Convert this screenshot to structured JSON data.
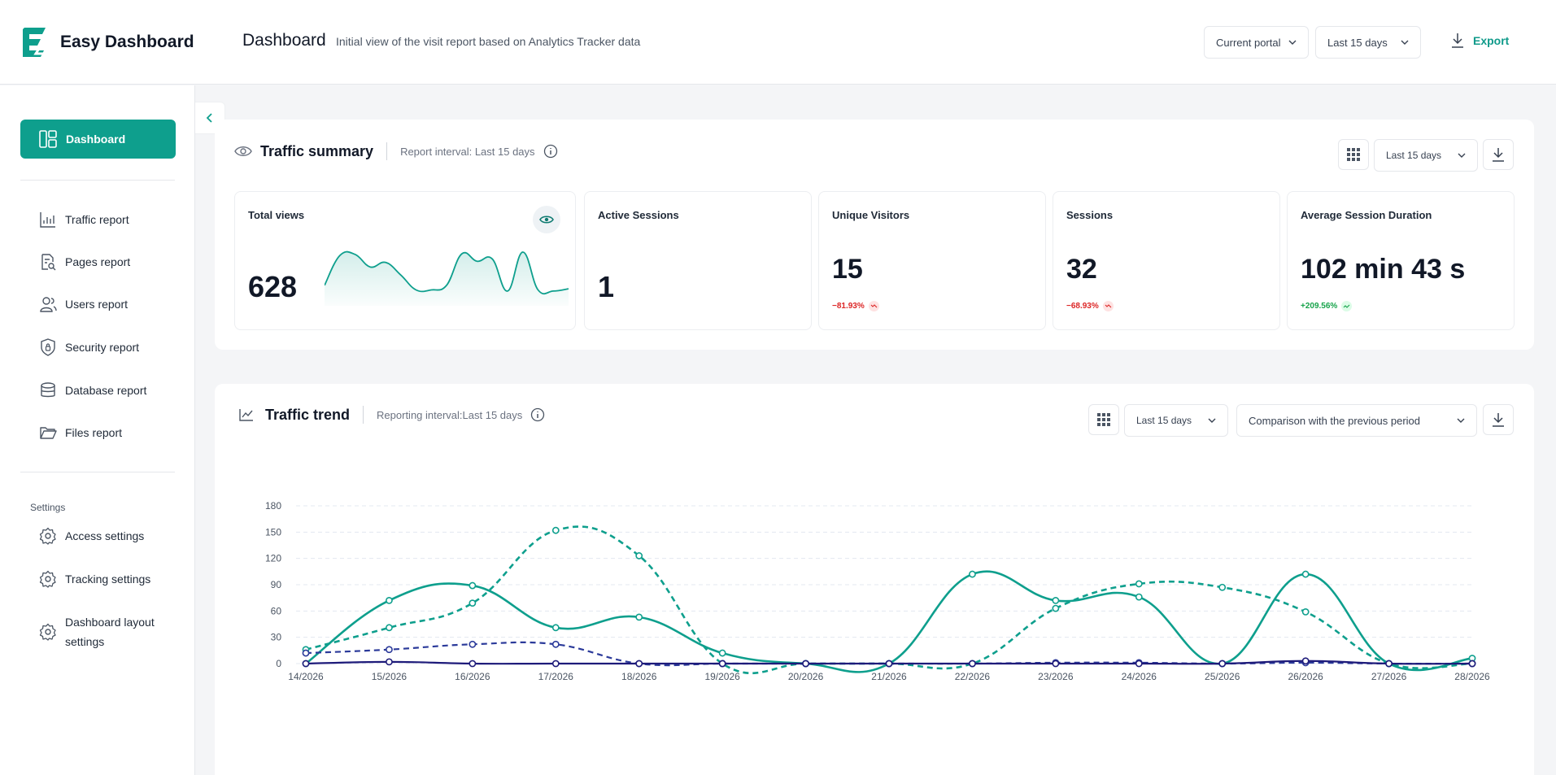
{
  "app": {
    "name": "Easy Dashboard",
    "title": "Dashboard",
    "subtitle": "Initial view of the visit report based on Analytics Tracker data"
  },
  "header": {
    "portal_select": "Current portal",
    "period_select": "Last 15 days",
    "export_label": "Export"
  },
  "sidebar": {
    "active": "Dashboard",
    "items": [
      {
        "label": "Traffic report",
        "icon": "bar-chart-icon"
      },
      {
        "label": "Pages report",
        "icon": "page-search-icon"
      },
      {
        "label": "Users report",
        "icon": "users-icon"
      },
      {
        "label": "Security report",
        "icon": "shield-icon"
      },
      {
        "label": "Database report",
        "icon": "database-icon"
      },
      {
        "label": "Files report",
        "icon": "folder-icon"
      }
    ],
    "settings_heading": "Settings",
    "settings": [
      {
        "label": "Access settings",
        "icon": "gear-icon"
      },
      {
        "label": "Tracking settings",
        "icon": "gear-icon"
      },
      {
        "label": "Dashboard layout",
        "label2": "settings",
        "icon": "gear-icon"
      }
    ]
  },
  "summary": {
    "title": "Traffic summary",
    "interval": "Report interval: Last 15 days",
    "period_select": "Last 15 days",
    "metrics": [
      {
        "label": "Total views",
        "value": "628"
      },
      {
        "label": "Active Sessions",
        "value": "1"
      },
      {
        "label": "Unique Visitors",
        "value": "15",
        "delta": "−81.93%",
        "trend": "down"
      },
      {
        "label": "Sessions",
        "value": "32",
        "delta": "−68.93%",
        "trend": "down"
      },
      {
        "label": "Average Session Duration",
        "value": "102 min 43 s",
        "delta": "+209.56%",
        "trend": "up"
      }
    ]
  },
  "trend": {
    "title": "Traffic trend",
    "interval": "Reporting interval:Last 15 days",
    "period_select": "Last 15 days",
    "comparison_select": "Comparison with the previous period"
  },
  "colors": {
    "accent": "#0e9f8d",
    "navy": "#1e1b7a",
    "navy_dashed": "#2b3a9a"
  },
  "chart_data": {
    "type": "line",
    "categories": [
      "14/2026",
      "15/2026",
      "16/2026",
      "17/2026",
      "18/2026",
      "19/2026",
      "20/2026",
      "21/2026",
      "22/2026",
      "23/2026",
      "24/2026",
      "25/2026",
      "26/2026",
      "27/2026",
      "28/2026"
    ],
    "ylim": [
      0,
      180
    ],
    "yticks": [
      0,
      30,
      60,
      90,
      120,
      150,
      180
    ],
    "grid": true,
    "series": [
      {
        "color": "#0e9f8d",
        "dashed": false,
        "values": [
          0,
          72,
          89,
          41,
          53,
          12,
          0,
          0,
          102,
          72,
          76,
          0,
          102,
          0,
          6
        ]
      },
      {
        "color": "#0e9f8d",
        "dashed": true,
        "values": [
          16,
          41,
          69,
          152,
          123,
          0,
          0,
          0,
          0,
          63,
          91,
          87,
          59,
          0,
          0
        ]
      },
      {
        "color": "#2b3a9a",
        "dashed": true,
        "values": [
          12,
          16,
          22,
          22,
          0,
          0,
          0,
          0,
          0,
          1,
          1,
          0,
          1,
          0,
          0
        ]
      },
      {
        "color": "#1e1b7a",
        "dashed": false,
        "values": [
          0,
          2,
          0,
          0,
          0,
          0,
          0,
          0,
          0,
          0,
          0,
          0,
          3,
          0,
          0
        ]
      }
    ]
  },
  "sparkline": [
    30,
    82,
    84,
    62,
    70,
    48,
    22,
    22,
    30,
    85,
    72,
    76,
    20,
    88,
    22,
    20,
    24
  ]
}
